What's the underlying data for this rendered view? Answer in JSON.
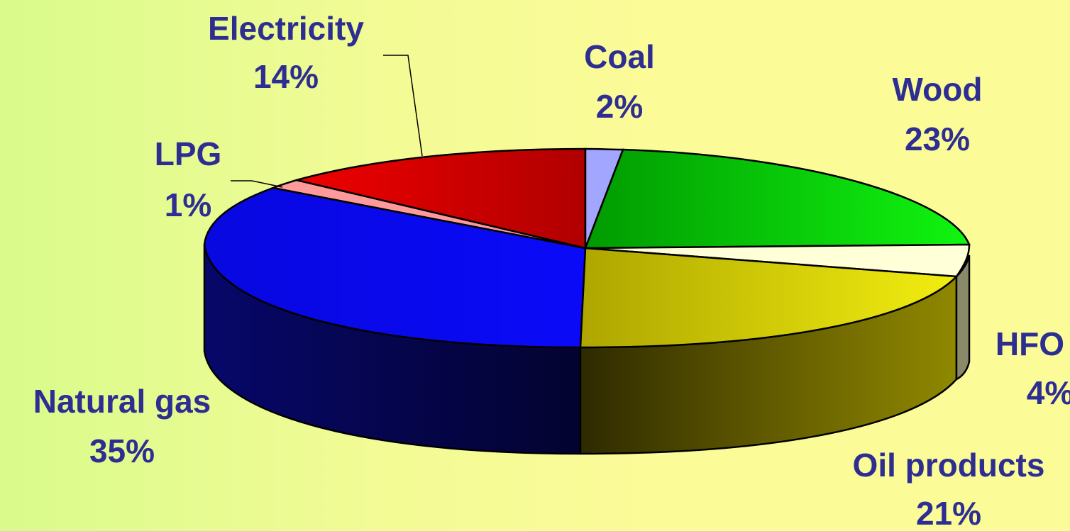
{
  "chart_data": {
    "type": "pie",
    "style": "3d",
    "title": "",
    "slices": [
      {
        "name": "Coal",
        "value": 2,
        "label": "2%",
        "color": "#a3a6ff",
        "side_color": "#6a6dc0"
      },
      {
        "name": "Wood",
        "value": 23,
        "label": "23%",
        "color": "#08c208",
        "side_color": "#056b05"
      },
      {
        "name": "HFO",
        "value": 4,
        "label": "4%",
        "color": "#ffffd8",
        "side_color": "#8a8a6a"
      },
      {
        "name": "Oil products",
        "value": 21,
        "label": "21%",
        "color": "#c9c400",
        "side_color": "#5a5300"
      },
      {
        "name": "Natural gas",
        "value": 35,
        "label": "35%",
        "color": "#0808e0",
        "side_color": "#050560"
      },
      {
        "name": "LPG",
        "value": 1,
        "label": "1%",
        "color": "#ff9a9a",
        "side_color": "#a05050"
      },
      {
        "name": "Electricity",
        "value": 14,
        "label": "14%",
        "color": "#e00000",
        "side_color": "#700000"
      }
    ],
    "label_color": "#2e2e92",
    "legend": "none"
  }
}
